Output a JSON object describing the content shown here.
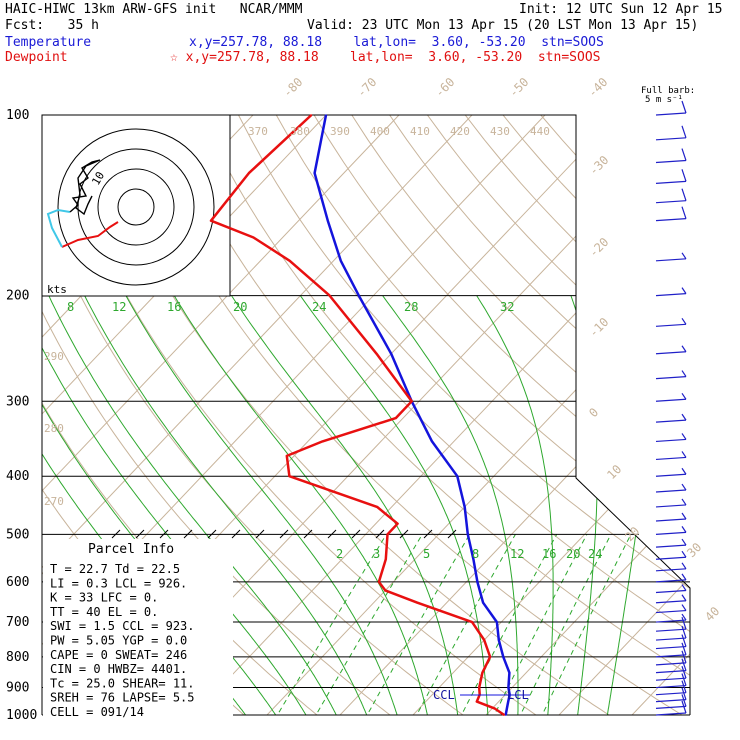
{
  "header": {
    "left_line1": "HAIC-HIWC 13km ARW-GFS init   NCAR/MMM",
    "left_line2": "Fcst:   35 h",
    "init": "Init: 12 UTC Sun 12 Apr 15",
    "valid": "Valid: 23 UTC Mon 13 Apr 15 (20 LST Mon 13 Apr 15)",
    "temp_label": "Temperature",
    "temp_info": "x,y=257.78, 88.18    lat,lon=  3.60, -53.20  stn=SOOS",
    "dew_label": "Dewpoint",
    "dew_info": "☆ x,y=257.78, 88.18    lat,lon=  3.60, -53.20  stn=SOOS",
    "barb_title_1": "Full barb:",
    "barb_title_2": "5 m s⁻¹"
  },
  "colors": {
    "temperature": "#1414dc",
    "dewpoint": "#e81010",
    "isotherm": "#c8b49b",
    "mixing_ratio": "#2ea82e",
    "grid": "#000000",
    "wind_barb": "#2020c8",
    "hodo_trace": "#000000",
    "hodo_cyan": "#40c8e8"
  },
  "pressure_labels": [
    "100",
    "200",
    "300",
    "400",
    "500",
    "600",
    "700",
    "800",
    "900",
    "1000"
  ],
  "isotherm_top_labels": [
    "-80",
    "-70",
    "-60",
    "-50",
    "-40"
  ],
  "isotherm_right_labels": [
    "-30",
    "-20",
    "-10",
    "0",
    "10",
    "20",
    "30",
    "40"
  ],
  "theta_top_labels": [
    "370",
    "380",
    "390",
    "400",
    "410",
    "420",
    "430",
    "440"
  ],
  "theta_left_labels": [
    "290",
    "280",
    "270"
  ],
  "mixing_upper_labels": [
    "8",
    "12",
    "16",
    "20",
    "24",
    "28",
    "32"
  ],
  "mixing_lower_labels": [
    "2",
    "3",
    "5",
    "8",
    "12",
    "16",
    "20",
    "24"
  ],
  "hodograph": {
    "unit_label": "kts",
    "ring_label": "10"
  },
  "parcel": {
    "title": "Parcel Info",
    "rows": [
      "T   =   22.7  Td =  22.5",
      "LI  =    0.3  LCL =  926.",
      "K   =     33  LFC =    0.",
      "TT  =     40  EL  =    0.",
      "SWI =    1.5  CCL =  923.",
      "PW  =   5.05  YGP =   0.0",
      "CAPE =     0  SWEAT=  246",
      "CIN  =     0  HWBZ= 4401.",
      "Tc  =   25.0  SHEAR=  11.",
      "SREH =    76  LAPSE=  5.5",
      "CELL = 091/14"
    ]
  },
  "markers": {
    "ccl_label": "CCL",
    "lcl_label": "LCL"
  },
  "chart_data": {
    "type": "line",
    "title": "",
    "xlabel": "",
    "ylabel": "",
    "y_axis": "pressure (hPa), log scale",
    "ylim": [
      1000,
      100
    ],
    "series": [
      {
        "name": "Temperature",
        "pressure": [
          1000,
          975,
          950,
          925,
          900,
          850,
          800,
          750,
          700,
          650,
          600,
          550,
          500,
          450,
          400,
          350,
          300,
          250,
          200,
          175,
          150,
          125,
          100
        ],
        "values": [
          22.7,
          22.0,
          21.3,
          20.6,
          19.5,
          17.7,
          14.8,
          12.0,
          9.4,
          5.0,
          1.5,
          -2.0,
          -6.0,
          -10.0,
          -15.0,
          -23.0,
          -31.0,
          -40.0,
          -52.0,
          -59.0,
          -66.0,
          -74.0,
          -80.0
        ]
      },
      {
        "name": "Dewpoint",
        "pressure": [
          1000,
          975,
          950,
          925,
          900,
          850,
          800,
          750,
          700,
          650,
          620,
          600,
          550,
          500,
          480,
          450,
          400,
          370,
          350,
          320,
          300,
          250,
          200,
          175,
          160,
          150,
          125,
          100
        ],
        "values": [
          22.5,
          20.3,
          17.0,
          16.5,
          15.5,
          14.0,
          13.0,
          10.0,
          6.0,
          -4.0,
          -10.0,
          -12.0,
          -14.0,
          -17.0,
          -17.0,
          -22.0,
          -38.0,
          -41.0,
          -38.0,
          -31.0,
          -31.0,
          -42.0,
          -56.0,
          -66.0,
          -74.0,
          -82.0,
          -83.0,
          -82.0
        ]
      }
    ],
    "wind_barbs": {
      "pressure": [
        1000,
        975,
        950,
        925,
        900,
        875,
        850,
        825,
        800,
        775,
        750,
        725,
        700,
        675,
        650,
        625,
        600,
        575,
        550,
        525,
        500,
        475,
        450,
        425,
        400,
        375,
        350,
        325,
        300,
        275,
        250,
        225,
        200,
        175,
        150,
        140,
        130,
        120,
        110,
        100
      ],
      "speed_ms": [
        6,
        7,
        7,
        7,
        7,
        7,
        7,
        6,
        6,
        5,
        5,
        5,
        4,
        4,
        4,
        4,
        3,
        3,
        3,
        3,
        3,
        3,
        3,
        3,
        3,
        3,
        3,
        3,
        4,
        4,
        4,
        4,
        3,
        3,
        5,
        5,
        5,
        6,
        5,
        5
      ]
    }
  }
}
